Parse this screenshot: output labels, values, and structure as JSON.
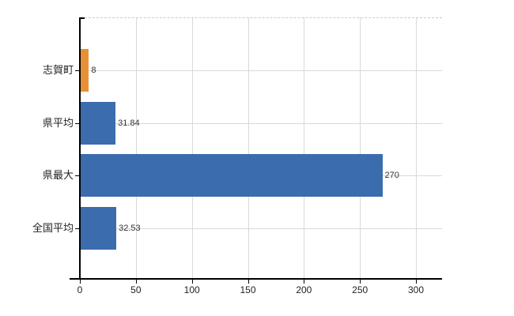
{
  "chart_data": {
    "type": "bar",
    "orientation": "horizontal",
    "title": "",
    "categories": [
      "志賀町",
      "県平均",
      "県最大",
      "全国平均"
    ],
    "values": [
      8,
      31.84,
      270,
      32.53
    ],
    "value_labels": [
      "8",
      "31.84",
      "270",
      "32.53"
    ],
    "bar_colors": [
      "#e89134",
      "#3b6cae",
      "#3b6cae",
      "#3b6cae"
    ],
    "x_ticks": [
      0,
      50,
      100,
      150,
      200,
      250,
      300
    ],
    "x_tick_labels": [
      "0",
      "50",
      "100",
      "150",
      "200",
      "250",
      "300"
    ],
    "xlim": [
      0,
      323
    ],
    "grid": true,
    "legend": "none",
    "colors": {
      "highlight_bar": "#e89134",
      "default_bar": "#3b6cae",
      "gridline": "#d9d9d9",
      "axis": "#000000",
      "label_text": "#222222",
      "value_text": "#333333",
      "background": "#ffffff"
    }
  }
}
